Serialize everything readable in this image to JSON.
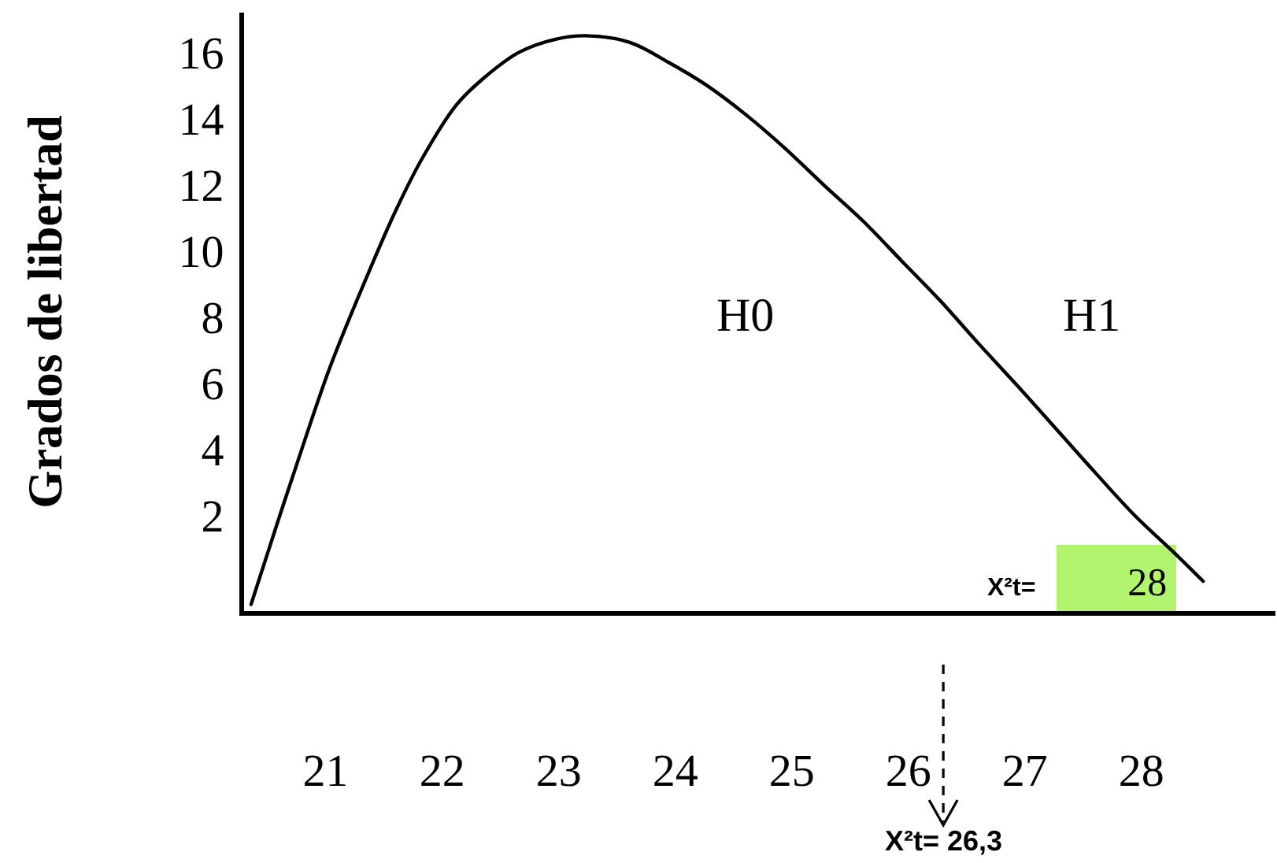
{
  "chart_data": {
    "type": "line",
    "ylabel": "Grados de libertad",
    "x": [
      20.36,
      20.58,
      20.73,
      21.04,
      21.4,
      21.6,
      21.83,
      22.12,
      22.35,
      22.66,
      22.98,
      23.23,
      23.61,
      23.94,
      24.27,
      24.61,
      24.94,
      25.27,
      25.61,
      25.94,
      26.27,
      26.6,
      26.94,
      27.27,
      27.6,
      27.94,
      28.27,
      28.53
    ],
    "values": [
      -0.7,
      1.7,
      3.3,
      6.5,
      9.6,
      11.2,
      12.8,
      14.4,
      15.2,
      16.0,
      16.4,
      16.5,
      16.3,
      15.7,
      15.0,
      14.1,
      13.1,
      12.0,
      10.9,
      9.7,
      8.5,
      7.2,
      5.9,
      4.6,
      3.3,
      2.0,
      0.9,
      0.0
    ],
    "color": "#000000",
    "xlim": [
      20.3,
      29.15
    ],
    "ylim": [
      -0.9,
      17.2
    ],
    "xticks": [
      21,
      22,
      23,
      24,
      25,
      26,
      27,
      28
    ],
    "yticks": [
      2,
      4,
      6,
      8,
      10,
      12,
      14,
      16
    ],
    "annotations": [
      "H0",
      "H1",
      "X²t= 28",
      {
        "text": "X²t= 26,3",
        "x": 26.3
      }
    ]
  }
}
